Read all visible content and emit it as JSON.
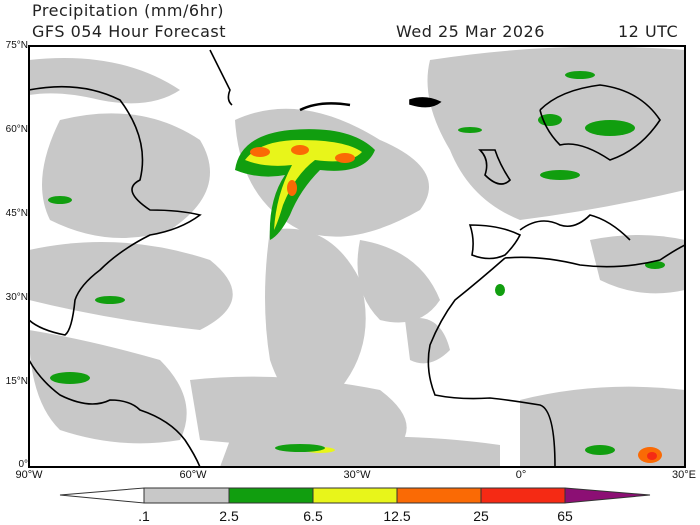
{
  "header": {
    "title": "Precipitation (mm/6hr)",
    "model": "GFS 054 Hour Forecast",
    "date": "Wed 25 Mar 2026",
    "time": "12 UTC"
  },
  "map": {
    "lat_labels": [
      "75°N",
      "60°N",
      "45°N",
      "30°N",
      "15°N",
      "0°"
    ],
    "lon_labels": [
      "90°W",
      "60°W",
      "30°W",
      "0°",
      "30°E"
    ],
    "region": "North Atlantic"
  },
  "colorbar": {
    "labels": [
      ".1",
      "2.5",
      "6.5",
      "12.5",
      "25",
      "65"
    ],
    "colors": [
      "#c8c8c8",
      "#119e0f",
      "#e8f51a",
      "#fa6a05",
      "#f52a14",
      "#8c0f74"
    ]
  }
}
